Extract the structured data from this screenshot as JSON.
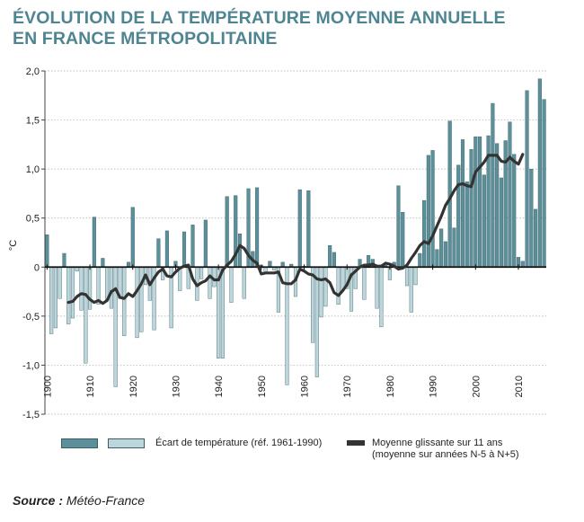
{
  "title_line1": "ÉVOLUTION DE LA TEMPÉRATURE MOYENNE ANNUELLE",
  "title_line2": "EN FRANCE MÉTROPOLITAINE",
  "source_label": "Source :",
  "source_value": "Météo-France",
  "colors": {
    "title": "#4f8593",
    "bar_positive": "#5b8f99",
    "bar_negative": "#bcd7db",
    "moving_average": "#333333",
    "grid": "#aaaaaa"
  },
  "chart_data": {
    "type": "bar",
    "ylabel": "°C",
    "ylim": [
      -1.5,
      2.0
    ],
    "yticks": [
      "2,0",
      "1,5",
      "1,0",
      "0,5",
      "0",
      "-0,5",
      "-1,0",
      "-1,5"
    ],
    "ytick_values": [
      2.0,
      1.5,
      1.0,
      0.5,
      0,
      -0.5,
      -1.0,
      -1.5
    ],
    "xticks": [
      "1900",
      "1910",
      "1920",
      "1930",
      "1940",
      "1950",
      "1960",
      "1970",
      "1980",
      "1990",
      "2000",
      "2010"
    ],
    "xtick_values": [
      1900,
      1910,
      1920,
      1930,
      1940,
      1950,
      1960,
      1970,
      1980,
      1990,
      2000,
      2010
    ],
    "grid": true,
    "series": [
      {
        "name": "Écart de température (réf. 1961-1990)",
        "years": [
          1900,
          1901,
          1902,
          1903,
          1904,
          1905,
          1906,
          1907,
          1908,
          1909,
          1910,
          1911,
          1912,
          1913,
          1914,
          1915,
          1916,
          1917,
          1918,
          1919,
          1920,
          1921,
          1922,
          1923,
          1924,
          1925,
          1926,
          1927,
          1928,
          1929,
          1930,
          1931,
          1932,
          1933,
          1934,
          1935,
          1936,
          1937,
          1938,
          1939,
          1940,
          1941,
          1942,
          1943,
          1944,
          1945,
          1946,
          1947,
          1948,
          1949,
          1950,
          1951,
          1952,
          1953,
          1954,
          1955,
          1956,
          1957,
          1958,
          1959,
          1960,
          1961,
          1962,
          1963,
          1964,
          1965,
          1966,
          1967,
          1968,
          1969,
          1970,
          1971,
          1972,
          1973,
          1974,
          1975,
          1976,
          1977,
          1978,
          1979,
          1980,
          1981,
          1982,
          1983,
          1984,
          1985,
          1986,
          1987,
          1988,
          1989,
          1990,
          1991,
          1992,
          1993,
          1994,
          1995,
          1996,
          1997,
          1998,
          1999,
          2000,
          2001,
          2002,
          2003,
          2004,
          2005,
          2006,
          2007,
          2008,
          2009,
          2010,
          2011,
          2012,
          2013,
          2014,
          2015,
          2016
        ],
        "values": [
          0.33,
          -0.68,
          -0.62,
          -0.32,
          0.14,
          -0.58,
          -0.52,
          -0.04,
          -0.44,
          -0.98,
          -0.43,
          0.51,
          -0.38,
          0.09,
          -0.34,
          -0.42,
          -1.22,
          -0.32,
          -0.7,
          0.05,
          0.61,
          -0.72,
          -0.66,
          -0.18,
          -0.34,
          -0.64,
          0.29,
          -0.13,
          0.37,
          -0.62,
          0.06,
          -0.24,
          0.36,
          -0.22,
          0.43,
          -0.34,
          -0.12,
          0.48,
          -0.32,
          -0.2,
          -0.93,
          -0.93,
          0.72,
          -0.36,
          0.73,
          0.34,
          -0.32,
          0.8,
          0.16,
          0.81,
          0.02,
          -0.06,
          0.06,
          -0.03,
          -0.46,
          0.05,
          -1.2,
          0.03,
          -0.3,
          0.79,
          0.01,
          0.78,
          -0.77,
          -1.12,
          -0.51,
          -0.4,
          0.22,
          0.15,
          -0.38,
          -0.24,
          -0.22,
          -0.45,
          -0.22,
          0.08,
          -0.33,
          0.12,
          0.08,
          -0.42,
          -0.61,
          0.02,
          -0.13,
          0.05,
          0.83,
          0.56,
          -0.19,
          -0.46,
          -0.18,
          0.14,
          0.68,
          1.14,
          1.19,
          0.18,
          0.39,
          0.26,
          1.49,
          0.4,
          1.04,
          1.3,
          0.87,
          1.2,
          1.33,
          1.33,
          0.94,
          1.34,
          1.67,
          1.26,
          0.91,
          1.29,
          1.48,
          1.15,
          0.1,
          0.06,
          1.8,
          1.0,
          0.59,
          1.92,
          1.71
        ]
      },
      {
        "name": "Moyenne glissante sur 11 ans (moyenne sur années N-5 à N+5)",
        "years": [
          1905,
          1906,
          1907,
          1908,
          1909,
          1910,
          1911,
          1912,
          1913,
          1914,
          1915,
          1916,
          1917,
          1918,
          1919,
          1920,
          1921,
          1922,
          1923,
          1924,
          1925,
          1926,
          1927,
          1928,
          1929,
          1930,
          1931,
          1932,
          1933,
          1934,
          1935,
          1936,
          1937,
          1938,
          1939,
          1940,
          1941,
          1942,
          1943,
          1944,
          1945,
          1946,
          1947,
          1948,
          1949,
          1950,
          1951,
          1952,
          1953,
          1954,
          1955,
          1956,
          1957,
          1958,
          1959,
          1960,
          1961,
          1962,
          1963,
          1964,
          1965,
          1966,
          1967,
          1968,
          1969,
          1970,
          1971,
          1972,
          1973,
          1974,
          1975,
          1976,
          1977,
          1978,
          1979,
          1980,
          1981,
          1982,
          1983,
          1984,
          1985,
          1986,
          1987,
          1988,
          1989,
          1990,
          1991,
          1992,
          1993,
          1994,
          1995,
          1996,
          1997,
          1998,
          1999,
          2000,
          2001,
          2002,
          2003,
          2004,
          2005,
          2006,
          2007,
          2008,
          2009,
          2010,
          2011
        ],
        "values": [
          -0.36,
          -0.35,
          -0.3,
          -0.27,
          -0.28,
          -0.33,
          -0.36,
          -0.34,
          -0.37,
          -0.34,
          -0.25,
          -0.22,
          -0.31,
          -0.32,
          -0.27,
          -0.3,
          -0.24,
          -0.17,
          -0.08,
          -0.18,
          -0.11,
          -0.05,
          -0.02,
          -0.09,
          -0.1,
          -0.05,
          -0.01,
          0.01,
          0.02,
          -0.12,
          -0.19,
          -0.16,
          -0.14,
          -0.09,
          -0.13,
          -0.13,
          -0.03,
          0.02,
          0.06,
          0.13,
          0.22,
          0.19,
          0.12,
          0.07,
          0.04,
          -0.07,
          -0.06,
          -0.06,
          -0.06,
          -0.05,
          -0.16,
          -0.17,
          -0.17,
          -0.13,
          -0.02,
          -0.04,
          -0.07,
          -0.08,
          -0.12,
          -0.13,
          -0.12,
          -0.16,
          -0.26,
          -0.29,
          -0.24,
          -0.18,
          -0.08,
          -0.04,
          0.0,
          0.02,
          0.02,
          0.03,
          0.01,
          0.01,
          0.04,
          0.03,
          0.01,
          -0.02,
          -0.01,
          0.02,
          0.09,
          0.15,
          0.22,
          0.26,
          0.24,
          0.32,
          0.42,
          0.52,
          0.63,
          0.7,
          0.78,
          0.84,
          0.85,
          0.83,
          0.82,
          0.97,
          1.02,
          1.07,
          1.14,
          1.14,
          1.14,
          1.08,
          1.07,
          1.12,
          1.08,
          1.05,
          1.15
        ]
      }
    ],
    "legend": {
      "bars_label": "Écart de température (réf. 1961-1990)",
      "line_label_1": "Moyenne glissante sur 11 ans",
      "line_label_2": "(moyenne sur années N-5 à N+5)"
    }
  }
}
